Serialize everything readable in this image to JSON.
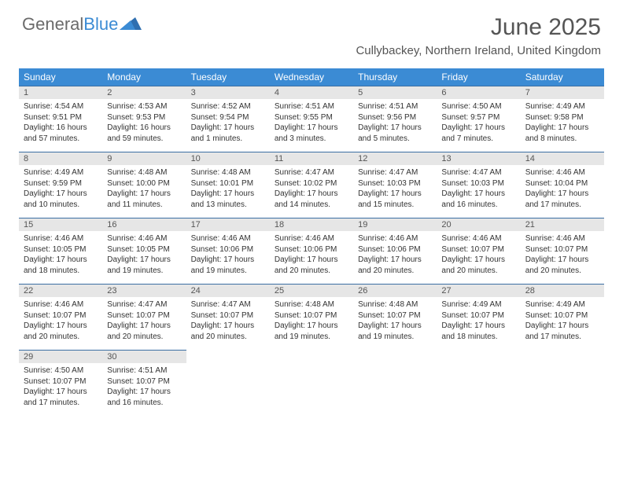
{
  "brand": {
    "word1": "General",
    "word2": "Blue"
  },
  "title": "June 2025",
  "location": "Cullybackey, Northern Ireland, United Kingdom",
  "colors": {
    "header_bg": "#3b8bd4",
    "header_text": "#ffffff",
    "daynum_bg": "#e6e6e6",
    "daynum_border": "#3b6fa3",
    "body_text": "#333333",
    "title_text": "#555555",
    "logo_gray": "#6b6b6b",
    "logo_blue": "#3b8bd4",
    "page_bg": "#ffffff"
  },
  "typography": {
    "title_fontsize": 30,
    "location_fontsize": 15,
    "dayhead_fontsize": 12,
    "daynum_fontsize": 11,
    "content_fontsize": 10
  },
  "day_headers": [
    "Sunday",
    "Monday",
    "Tuesday",
    "Wednesday",
    "Thursday",
    "Friday",
    "Saturday"
  ],
  "weeks": [
    [
      {
        "n": "1",
        "sr": "Sunrise: 4:54 AM",
        "ss": "Sunset: 9:51 PM",
        "dl": "Daylight: 16 hours and 57 minutes."
      },
      {
        "n": "2",
        "sr": "Sunrise: 4:53 AM",
        "ss": "Sunset: 9:53 PM",
        "dl": "Daylight: 16 hours and 59 minutes."
      },
      {
        "n": "3",
        "sr": "Sunrise: 4:52 AM",
        "ss": "Sunset: 9:54 PM",
        "dl": "Daylight: 17 hours and 1 minutes."
      },
      {
        "n": "4",
        "sr": "Sunrise: 4:51 AM",
        "ss": "Sunset: 9:55 PM",
        "dl": "Daylight: 17 hours and 3 minutes."
      },
      {
        "n": "5",
        "sr": "Sunrise: 4:51 AM",
        "ss": "Sunset: 9:56 PM",
        "dl": "Daylight: 17 hours and 5 minutes."
      },
      {
        "n": "6",
        "sr": "Sunrise: 4:50 AM",
        "ss": "Sunset: 9:57 PM",
        "dl": "Daylight: 17 hours and 7 minutes."
      },
      {
        "n": "7",
        "sr": "Sunrise: 4:49 AM",
        "ss": "Sunset: 9:58 PM",
        "dl": "Daylight: 17 hours and 8 minutes."
      }
    ],
    [
      {
        "n": "8",
        "sr": "Sunrise: 4:49 AM",
        "ss": "Sunset: 9:59 PM",
        "dl": "Daylight: 17 hours and 10 minutes."
      },
      {
        "n": "9",
        "sr": "Sunrise: 4:48 AM",
        "ss": "Sunset: 10:00 PM",
        "dl": "Daylight: 17 hours and 11 minutes."
      },
      {
        "n": "10",
        "sr": "Sunrise: 4:48 AM",
        "ss": "Sunset: 10:01 PM",
        "dl": "Daylight: 17 hours and 13 minutes."
      },
      {
        "n": "11",
        "sr": "Sunrise: 4:47 AM",
        "ss": "Sunset: 10:02 PM",
        "dl": "Daylight: 17 hours and 14 minutes."
      },
      {
        "n": "12",
        "sr": "Sunrise: 4:47 AM",
        "ss": "Sunset: 10:03 PM",
        "dl": "Daylight: 17 hours and 15 minutes."
      },
      {
        "n": "13",
        "sr": "Sunrise: 4:47 AM",
        "ss": "Sunset: 10:03 PM",
        "dl": "Daylight: 17 hours and 16 minutes."
      },
      {
        "n": "14",
        "sr": "Sunrise: 4:46 AM",
        "ss": "Sunset: 10:04 PM",
        "dl": "Daylight: 17 hours and 17 minutes."
      }
    ],
    [
      {
        "n": "15",
        "sr": "Sunrise: 4:46 AM",
        "ss": "Sunset: 10:05 PM",
        "dl": "Daylight: 17 hours and 18 minutes."
      },
      {
        "n": "16",
        "sr": "Sunrise: 4:46 AM",
        "ss": "Sunset: 10:05 PM",
        "dl": "Daylight: 17 hours and 19 minutes."
      },
      {
        "n": "17",
        "sr": "Sunrise: 4:46 AM",
        "ss": "Sunset: 10:06 PM",
        "dl": "Daylight: 17 hours and 19 minutes."
      },
      {
        "n": "18",
        "sr": "Sunrise: 4:46 AM",
        "ss": "Sunset: 10:06 PM",
        "dl": "Daylight: 17 hours and 20 minutes."
      },
      {
        "n": "19",
        "sr": "Sunrise: 4:46 AM",
        "ss": "Sunset: 10:06 PM",
        "dl": "Daylight: 17 hours and 20 minutes."
      },
      {
        "n": "20",
        "sr": "Sunrise: 4:46 AM",
        "ss": "Sunset: 10:07 PM",
        "dl": "Daylight: 17 hours and 20 minutes."
      },
      {
        "n": "21",
        "sr": "Sunrise: 4:46 AM",
        "ss": "Sunset: 10:07 PM",
        "dl": "Daylight: 17 hours and 20 minutes."
      }
    ],
    [
      {
        "n": "22",
        "sr": "Sunrise: 4:46 AM",
        "ss": "Sunset: 10:07 PM",
        "dl": "Daylight: 17 hours and 20 minutes."
      },
      {
        "n": "23",
        "sr": "Sunrise: 4:47 AM",
        "ss": "Sunset: 10:07 PM",
        "dl": "Daylight: 17 hours and 20 minutes."
      },
      {
        "n": "24",
        "sr": "Sunrise: 4:47 AM",
        "ss": "Sunset: 10:07 PM",
        "dl": "Daylight: 17 hours and 20 minutes."
      },
      {
        "n": "25",
        "sr": "Sunrise: 4:48 AM",
        "ss": "Sunset: 10:07 PM",
        "dl": "Daylight: 17 hours and 19 minutes."
      },
      {
        "n": "26",
        "sr": "Sunrise: 4:48 AM",
        "ss": "Sunset: 10:07 PM",
        "dl": "Daylight: 17 hours and 19 minutes."
      },
      {
        "n": "27",
        "sr": "Sunrise: 4:49 AM",
        "ss": "Sunset: 10:07 PM",
        "dl": "Daylight: 17 hours and 18 minutes."
      },
      {
        "n": "28",
        "sr": "Sunrise: 4:49 AM",
        "ss": "Sunset: 10:07 PM",
        "dl": "Daylight: 17 hours and 17 minutes."
      }
    ],
    [
      {
        "n": "29",
        "sr": "Sunrise: 4:50 AM",
        "ss": "Sunset: 10:07 PM",
        "dl": "Daylight: 17 hours and 17 minutes."
      },
      {
        "n": "30",
        "sr": "Sunrise: 4:51 AM",
        "ss": "Sunset: 10:07 PM",
        "dl": "Daylight: 17 hours and 16 minutes."
      },
      {
        "empty": true
      },
      {
        "empty": true
      },
      {
        "empty": true
      },
      {
        "empty": true
      },
      {
        "empty": true
      }
    ]
  ]
}
